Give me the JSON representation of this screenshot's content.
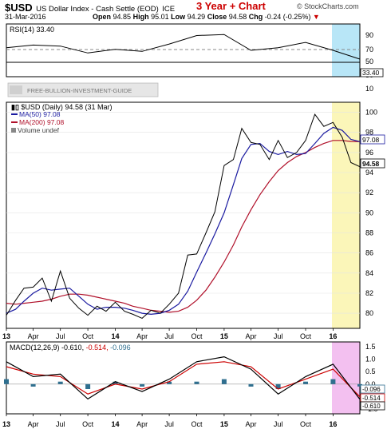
{
  "header": {
    "symbol": "$USD",
    "name": "US Dollar Index - Cash Settle (EOD)",
    "exchange": "ICE",
    "title": "3 Year + Chart",
    "source": "© StockCharts.com",
    "date": "31-Mar-2016",
    "open_label": "Open",
    "open": "94.85",
    "high_label": "High",
    "high": "95.01",
    "low_label": "Low",
    "low": "94.29",
    "close_label": "Close",
    "close": "94.58",
    "chg_label": "Chg",
    "chg": "-0.24 (-0.25%)"
  },
  "watermark": "FREE-BULLION-INVESTMENT-GUIDE",
  "rsi_panel": {
    "label": "RSI(14) 33.40",
    "value_tag": "33.40",
    "ticks": [
      "90",
      "70",
      "50",
      "30",
      "10"
    ]
  },
  "price_panel": {
    "legend_main": "$USD (Daily) 94.58 (31 Mar)",
    "legend_ma50": "MA(50) 97.08",
    "legend_ma200": "MA(200) 97.08",
    "legend_volume": "Volume undef",
    "tag_ma": "97.08",
    "tag_close": "94.58",
    "ticks": [
      "100",
      "98",
      "96",
      "94",
      "92",
      "90",
      "88",
      "86",
      "84",
      "82",
      "80"
    ]
  },
  "macd_panel": {
    "label_main": "MACD(12,26,9)",
    "value1": "-0.610,",
    "value2": "-0.514,",
    "value3": "-0.096",
    "tag_hist": "-0.096",
    "tag_signal": "-0.514",
    "tag_macd": "-0.610",
    "ticks": [
      "1.5",
      "1.0",
      "0.5",
      "0.0",
      "-0.5",
      "-1.0"
    ]
  },
  "x_labels": [
    "13",
    "Apr",
    "Jul",
    "Oct",
    "14",
    "Apr",
    "Jul",
    "Oct",
    "15",
    "Apr",
    "Jul",
    "Oct",
    "16"
  ],
  "colors": {
    "price": "#000000",
    "ma50": "#1a1aa0",
    "ma200": "#b0102a",
    "macd_line": "#000000",
    "signal_line": "#cc0000",
    "histogram": "#2f6f8f",
    "rsi_highlight": "#b8e6f7",
    "price_highlight": "#fbf6b9",
    "macd_highlight": "#f3c0f0"
  },
  "chart_data": [
    {
      "type": "line",
      "title": "RSI(14) 33.40",
      "ylim": [
        0,
        100
      ],
      "x": [
        "2013-01",
        "2013-04",
        "2013-07",
        "2013-10",
        "2014-01",
        "2014-04",
        "2014-07",
        "2014-10",
        "2015-01",
        "2015-04",
        "2015-07",
        "2015-10",
        "2016-01",
        "2016-03-31"
      ],
      "series": [
        {
          "name": "RSI(14)",
          "values": [
            55,
            60,
            58,
            45,
            52,
            48,
            62,
            78,
            80,
            50,
            55,
            65,
            50,
            33.4
          ]
        }
      ]
    },
    {
      "type": "line",
      "title": "$USD (Daily) 94.58 (31 Mar)",
      "ylim": [
        78.5,
        101
      ],
      "x": [
        "2013-01",
        "2013-02",
        "2013-03",
        "2013-04",
        "2013-05",
        "2013-06",
        "2013-07",
        "2013-08",
        "2013-09",
        "2013-10",
        "2013-11",
        "2013-12",
        "2014-01",
        "2014-02",
        "2014-03",
        "2014-04",
        "2014-05",
        "2014-06",
        "2014-07",
        "2014-08",
        "2014-09",
        "2014-10",
        "2014-11",
        "2014-12",
        "2015-01",
        "2015-02",
        "2015-03",
        "2015-04",
        "2015-05",
        "2015-06",
        "2015-07",
        "2015-08",
        "2015-09",
        "2015-10",
        "2015-11",
        "2015-12",
        "2016-01",
        "2016-02",
        "2016-03",
        "2016-03-31"
      ],
      "series": [
        {
          "name": "$USD",
          "values": [
            79.8,
            81.3,
            82.5,
            82.6,
            83.5,
            81.2,
            84.2,
            81.5,
            80.5,
            79.8,
            80.7,
            80.2,
            81.1,
            80.2,
            79.9,
            79.5,
            80.3,
            80.0,
            80.9,
            82.0,
            85.8,
            85.9,
            88.0,
            90.1,
            94.7,
            95.3,
            98.4,
            97.0,
            96.8,
            95.3,
            97.2,
            95.5,
            96.0,
            97.2,
            99.8,
            98.6,
            99.0,
            97.5,
            95.0,
            94.58
          ]
        },
        {
          "name": "MA(50) 97.08",
          "values": [
            80.0,
            80.4,
            81.2,
            82.0,
            82.5,
            82.3,
            82.4,
            82.5,
            81.7,
            80.9,
            80.4,
            80.6,
            80.6,
            80.5,
            80.3,
            80.0,
            79.9,
            80.0,
            80.3,
            80.9,
            82.2,
            84.1,
            86.0,
            87.9,
            90.0,
            92.8,
            95.4,
            96.8,
            96.9,
            96.1,
            95.8,
            96.1,
            95.8,
            95.9,
            96.9,
            97.9,
            98.5,
            98.2,
            97.3,
            97.08
          ]
        },
        {
          "name": "MA(200) 97.08",
          "values": [
            81.0,
            80.9,
            81.0,
            81.1,
            81.2,
            81.4,
            81.7,
            81.9,
            81.9,
            81.8,
            81.6,
            81.4,
            81.2,
            81.0,
            80.7,
            80.5,
            80.3,
            80.2,
            80.1,
            80.2,
            80.6,
            81.3,
            82.3,
            83.6,
            85.1,
            86.8,
            88.6,
            90.3,
            91.8,
            93.1,
            94.2,
            95.0,
            95.6,
            96.0,
            96.5,
            96.9,
            97.2,
            97.2,
            97.1,
            97.08
          ]
        }
      ]
    },
    {
      "type": "line",
      "title": "MACD(12,26,9) -0.610, -0.514, -0.096",
      "ylim": [
        -1.2,
        1.7
      ],
      "x": [
        "2013-01",
        "2013-04",
        "2013-07",
        "2013-10",
        "2014-01",
        "2014-04",
        "2014-07",
        "2014-10",
        "2015-01",
        "2015-04",
        "2015-07",
        "2015-10",
        "2016-01",
        "2016-03-31"
      ],
      "series": [
        {
          "name": "MACD(12,26,9)",
          "values": [
            0.9,
            0.3,
            0.4,
            -0.6,
            0.1,
            -0.3,
            0.2,
            0.9,
            1.1,
            0.6,
            -0.4,
            0.3,
            0.8,
            -0.61
          ]
        },
        {
          "name": "Signal",
          "values": [
            0.7,
            0.4,
            0.3,
            -0.4,
            0.0,
            -0.2,
            0.1,
            0.8,
            0.9,
            0.7,
            -0.2,
            0.2,
            0.6,
            -0.514
          ]
        },
        {
          "name": "Histogram",
          "values": [
            0.2,
            -0.1,
            0.1,
            -0.2,
            0.1,
            -0.1,
            0.1,
            0.1,
            0.2,
            -0.1,
            -0.2,
            0.1,
            0.2,
            -0.096
          ]
        }
      ]
    }
  ]
}
